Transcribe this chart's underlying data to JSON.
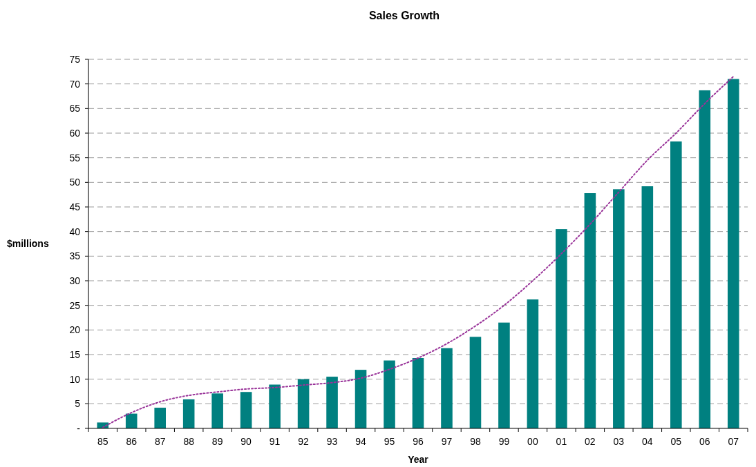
{
  "chart_data": {
    "type": "bar",
    "title": "Sales Growth",
    "xlabel": "Year",
    "ylabel": "$millions",
    "categories": [
      "85",
      "86",
      "87",
      "88",
      "89",
      "90",
      "91",
      "92",
      "93",
      "94",
      "95",
      "96",
      "97",
      "98",
      "99",
      "00",
      "01",
      "02",
      "03",
      "04",
      "05",
      "06",
      "07"
    ],
    "series": [
      {
        "color": "#008080",
        "values": [
          1.2,
          3.0,
          4.2,
          5.9,
          7.1,
          7.4,
          8.9,
          10.0,
          10.5,
          11.9,
          13.8,
          14.3,
          16.3,
          18.6,
          21.5,
          26.2,
          40.5,
          47.8,
          48.6,
          49.2,
          58.3,
          68.7,
          71.0
        ]
      },
      {
        "type": "line",
        "color": "#993399",
        "line_style": "dotted",
        "marker": "none",
        "x": [
          "85",
          "86",
          "87",
          "88",
          "89",
          "90",
          "91",
          "92",
          "93",
          "94",
          "95",
          "96",
          "97",
          "98",
          "99",
          "00",
          "01",
          "02",
          "03",
          "04",
          "05",
          "06",
          "07"
        ],
        "values": [
          0.2,
          3.2,
          5.4,
          6.7,
          7.4,
          8.0,
          8.3,
          8.8,
          9.3,
          10.2,
          12.0,
          14.3,
          17.2,
          20.8,
          25.0,
          30.0,
          35.5,
          41.5,
          48.0,
          54.5,
          60.0,
          66.0,
          71.5
        ]
      }
    ],
    "ylim": [
      0,
      75
    ],
    "yticks": [
      {
        "value": 0,
        "label": "-"
      },
      5,
      10,
      15,
      20,
      25,
      30,
      35,
      40,
      45,
      50,
      55,
      60,
      65,
      70,
      75
    ],
    "grid": "y"
  }
}
